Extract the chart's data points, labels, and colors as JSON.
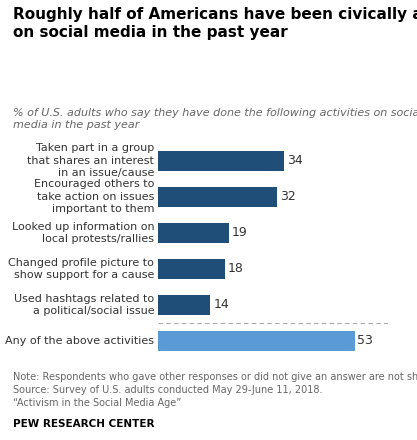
{
  "title": "Roughly half of Americans have been civically active\non social media in the past year",
  "subtitle": "% of U.S. adults who say they have done the following activities on social\nmedia in the past year",
  "categories": [
    "Taken part in a group\nthat shares an interest\nin an issue/cause",
    "Encouraged others to\ntake action on issues\nimportant to them",
    "Looked up information on\nlocal protests/rallies",
    "Changed profile picture to\nshow support for a cause",
    "Used hashtags related to\na political/social issue",
    "Any of the above activities"
  ],
  "values": [
    34,
    32,
    19,
    18,
    14,
    53
  ],
  "bar_colors": [
    "#1f4e79",
    "#1f4e79",
    "#1f4e79",
    "#1f4e79",
    "#1f4e79",
    "#5b9bd5"
  ],
  "note": "Note: Respondents who gave other responses or did not give an answer are not shown.\nSource: Survey of U.S. adults conducted May 29-June 11, 2018.\n“Activism in the Social Media Age”",
  "footer": "PEW RESEARCH CENTER",
  "xlim": [
    0,
    62
  ],
  "background_color": "#ffffff",
  "title_fontsize": 11,
  "subtitle_fontsize": 8,
  "label_fontsize": 8,
  "value_fontsize": 9,
  "note_fontsize": 7,
  "footer_fontsize": 7.5
}
